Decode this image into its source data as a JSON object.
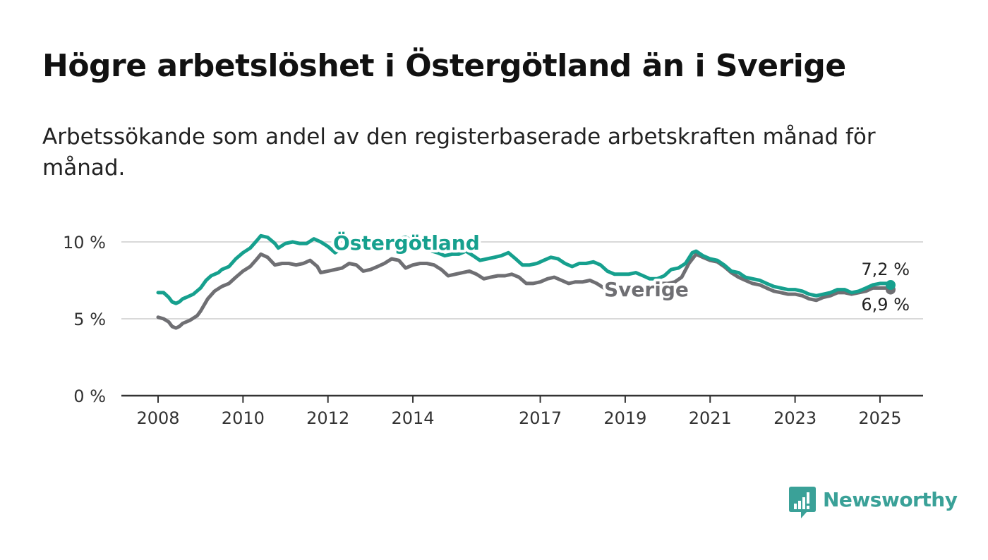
{
  "header": {
    "title": "Högre arbetslöshet i Östergötland än i Sverige",
    "subtitle": "Arbetssökande som andel av den registerbaserade arbetskraften månad för månad."
  },
  "brand": {
    "name": "Newsworthy",
    "icon": "newsworthy-logo-icon",
    "color": "#3aa198"
  },
  "chart_data": {
    "type": "line",
    "title": "Högre arbetslöshet i Östergötland än i Sverige",
    "subtitle": "Arbetssökande som andel av den registerbaserade arbetskraften månad för månad.",
    "xlabel": "",
    "ylabel": "",
    "xlim": [
      2008,
      2025.25
    ],
    "ylim": [
      0,
      10.5
    ],
    "y_ticks": [
      0,
      5,
      10
    ],
    "y_tick_labels": [
      "0 %",
      "5 %",
      "10 %"
    ],
    "x_ticks": [
      2008,
      2010,
      2012,
      2014,
      2017,
      2019,
      2021,
      2023,
      2025
    ],
    "x_tick_labels": [
      "2008",
      "2010",
      "2012",
      "2014",
      "2017",
      "2019",
      "2021",
      "2023",
      "2025"
    ],
    "grid": "horizontal",
    "legend": "inline labels",
    "series": [
      {
        "name": "Östergötland",
        "color": "#16a08e",
        "points": [
          [
            2008.0,
            6.7
          ],
          [
            2008.13,
            6.7
          ],
          [
            2008.25,
            6.4
          ],
          [
            2008.33,
            6.1
          ],
          [
            2008.42,
            6.0
          ],
          [
            2008.5,
            6.1
          ],
          [
            2008.58,
            6.3
          ],
          [
            2008.67,
            6.4
          ],
          [
            2008.83,
            6.6
          ],
          [
            2009.0,
            7.0
          ],
          [
            2009.13,
            7.5
          ],
          [
            2009.25,
            7.8
          ],
          [
            2009.42,
            8.0
          ],
          [
            2009.5,
            8.2
          ],
          [
            2009.67,
            8.4
          ],
          [
            2009.83,
            8.9
          ],
          [
            2010.0,
            9.3
          ],
          [
            2010.17,
            9.6
          ],
          [
            2010.33,
            10.1
          ],
          [
            2010.42,
            10.4
          ],
          [
            2010.58,
            10.3
          ],
          [
            2010.75,
            9.9
          ],
          [
            2010.83,
            9.6
          ],
          [
            2011.0,
            9.9
          ],
          [
            2011.17,
            10.0
          ],
          [
            2011.33,
            9.9
          ],
          [
            2011.5,
            9.9
          ],
          [
            2011.67,
            10.2
          ],
          [
            2011.83,
            10.0
          ],
          [
            2012.0,
            9.7
          ],
          [
            2012.17,
            9.3
          ],
          [
            2012.33,
            9.6
          ],
          [
            2012.5,
            9.8
          ],
          [
            2012.67,
            9.9
          ],
          [
            2012.83,
            9.8
          ],
          [
            2013.0,
            9.8
          ],
          [
            2013.17,
            9.7
          ],
          [
            2013.33,
            9.9
          ],
          [
            2013.5,
            10.0
          ],
          [
            2013.67,
            10.2
          ],
          [
            2013.83,
            10.3
          ],
          [
            2014.0,
            10.1
          ],
          [
            2014.17,
            9.8
          ],
          [
            2014.33,
            9.5
          ],
          [
            2014.58,
            9.3
          ],
          [
            2014.75,
            9.1
          ],
          [
            2014.92,
            9.2
          ],
          [
            2015.08,
            9.2
          ],
          [
            2015.25,
            9.4
          ],
          [
            2015.42,
            9.1
          ],
          [
            2015.58,
            8.8
          ],
          [
            2015.75,
            8.9
          ],
          [
            2015.92,
            9.0
          ],
          [
            2016.08,
            9.1
          ],
          [
            2016.25,
            9.3
          ],
          [
            2016.42,
            8.9
          ],
          [
            2016.58,
            8.5
          ],
          [
            2016.75,
            8.5
          ],
          [
            2016.92,
            8.6
          ],
          [
            2017.08,
            8.8
          ],
          [
            2017.25,
            9.0
          ],
          [
            2017.42,
            8.9
          ],
          [
            2017.58,
            8.6
          ],
          [
            2017.75,
            8.4
          ],
          [
            2017.92,
            8.6
          ],
          [
            2018.08,
            8.6
          ],
          [
            2018.25,
            8.7
          ],
          [
            2018.42,
            8.5
          ],
          [
            2018.58,
            8.1
          ],
          [
            2018.75,
            7.9
          ],
          [
            2018.92,
            7.9
          ],
          [
            2019.08,
            7.9
          ],
          [
            2019.25,
            8.0
          ],
          [
            2019.42,
            7.8
          ],
          [
            2019.58,
            7.6
          ],
          [
            2019.75,
            7.6
          ],
          [
            2019.92,
            7.8
          ],
          [
            2020.08,
            8.2
          ],
          [
            2020.25,
            8.3
          ],
          [
            2020.42,
            8.6
          ],
          [
            2020.58,
            9.3
          ],
          [
            2020.67,
            9.4
          ],
          [
            2020.83,
            9.1
          ],
          [
            2021.0,
            8.9
          ],
          [
            2021.17,
            8.8
          ],
          [
            2021.33,
            8.5
          ],
          [
            2021.5,
            8.1
          ],
          [
            2021.67,
            8.0
          ],
          [
            2021.83,
            7.7
          ],
          [
            2022.0,
            7.6
          ],
          [
            2022.17,
            7.5
          ],
          [
            2022.33,
            7.3
          ],
          [
            2022.5,
            7.1
          ],
          [
            2022.67,
            7.0
          ],
          [
            2022.83,
            6.9
          ],
          [
            2023.0,
            6.9
          ],
          [
            2023.17,
            6.8
          ],
          [
            2023.33,
            6.6
          ],
          [
            2023.5,
            6.5
          ],
          [
            2023.67,
            6.6
          ],
          [
            2023.83,
            6.7
          ],
          [
            2024.0,
            6.9
          ],
          [
            2024.17,
            6.9
          ],
          [
            2024.33,
            6.7
          ],
          [
            2024.5,
            6.8
          ],
          [
            2024.67,
            7.0
          ],
          [
            2024.83,
            7.2
          ],
          [
            2025.0,
            7.3
          ],
          [
            2025.17,
            7.3
          ],
          [
            2025.25,
            7.2
          ]
        ]
      },
      {
        "name": "Sverige",
        "color": "#6f6f73",
        "points": [
          [
            2008.0,
            5.1
          ],
          [
            2008.13,
            5.0
          ],
          [
            2008.25,
            4.8
          ],
          [
            2008.33,
            4.5
          ],
          [
            2008.42,
            4.4
          ],
          [
            2008.5,
            4.5
          ],
          [
            2008.58,
            4.7
          ],
          [
            2008.75,
            4.9
          ],
          [
            2008.92,
            5.2
          ],
          [
            2009.0,
            5.5
          ],
          [
            2009.17,
            6.3
          ],
          [
            2009.33,
            6.8
          ],
          [
            2009.5,
            7.1
          ],
          [
            2009.67,
            7.3
          ],
          [
            2009.83,
            7.7
          ],
          [
            2010.0,
            8.1
          ],
          [
            2010.17,
            8.4
          ],
          [
            2010.33,
            8.9
          ],
          [
            2010.42,
            9.2
          ],
          [
            2010.58,
            9.0
          ],
          [
            2010.75,
            8.5
          ],
          [
            2010.92,
            8.6
          ],
          [
            2011.08,
            8.6
          ],
          [
            2011.25,
            8.5
          ],
          [
            2011.42,
            8.6
          ],
          [
            2011.58,
            8.8
          ],
          [
            2011.75,
            8.4
          ],
          [
            2011.83,
            8.0
          ],
          [
            2012.0,
            8.1
          ],
          [
            2012.17,
            8.2
          ],
          [
            2012.33,
            8.3
          ],
          [
            2012.5,
            8.6
          ],
          [
            2012.67,
            8.5
          ],
          [
            2012.83,
            8.1
          ],
          [
            2013.0,
            8.2
          ],
          [
            2013.17,
            8.4
          ],
          [
            2013.33,
            8.6
          ],
          [
            2013.5,
            8.9
          ],
          [
            2013.67,
            8.8
          ],
          [
            2013.83,
            8.3
          ],
          [
            2014.0,
            8.5
          ],
          [
            2014.17,
            8.6
          ],
          [
            2014.33,
            8.6
          ],
          [
            2014.5,
            8.5
          ],
          [
            2014.67,
            8.2
          ],
          [
            2014.83,
            7.8
          ],
          [
            2015.0,
            7.9
          ],
          [
            2015.17,
            8.0
          ],
          [
            2015.33,
            8.1
          ],
          [
            2015.5,
            7.9
          ],
          [
            2015.67,
            7.6
          ],
          [
            2015.83,
            7.7
          ],
          [
            2016.0,
            7.8
          ],
          [
            2016.17,
            7.8
          ],
          [
            2016.33,
            7.9
          ],
          [
            2016.5,
            7.7
          ],
          [
            2016.67,
            7.3
          ],
          [
            2016.83,
            7.3
          ],
          [
            2017.0,
            7.4
          ],
          [
            2017.17,
            7.6
          ],
          [
            2017.33,
            7.7
          ],
          [
            2017.5,
            7.5
          ],
          [
            2017.67,
            7.3
          ],
          [
            2017.83,
            7.4
          ],
          [
            2018.0,
            7.4
          ],
          [
            2018.17,
            7.5
          ],
          [
            2018.33,
            7.3
          ],
          [
            2018.5,
            7.0
          ],
          [
            2018.67,
            6.8
          ],
          [
            2018.83,
            6.8
          ],
          [
            2019.0,
            6.8
          ],
          [
            2019.17,
            6.8
          ],
          [
            2019.33,
            6.9
          ],
          [
            2019.5,
            7.0
          ],
          [
            2019.67,
            7.2
          ],
          [
            2019.83,
            7.3
          ],
          [
            2020.0,
            7.3
          ],
          [
            2020.17,
            7.4
          ],
          [
            2020.33,
            7.7
          ],
          [
            2020.5,
            8.6
          ],
          [
            2020.67,
            9.2
          ],
          [
            2020.83,
            9.0
          ],
          [
            2021.0,
            8.8
          ],
          [
            2021.17,
            8.7
          ],
          [
            2021.33,
            8.4
          ],
          [
            2021.5,
            8.0
          ],
          [
            2021.67,
            7.7
          ],
          [
            2021.83,
            7.5
          ],
          [
            2022.0,
            7.3
          ],
          [
            2022.17,
            7.2
          ],
          [
            2022.33,
            7.0
          ],
          [
            2022.5,
            6.8
          ],
          [
            2022.67,
            6.7
          ],
          [
            2022.83,
            6.6
          ],
          [
            2023.0,
            6.6
          ],
          [
            2023.17,
            6.5
          ],
          [
            2023.33,
            6.3
          ],
          [
            2023.5,
            6.2
          ],
          [
            2023.67,
            6.4
          ],
          [
            2023.83,
            6.5
          ],
          [
            2024.0,
            6.7
          ],
          [
            2024.17,
            6.7
          ],
          [
            2024.33,
            6.6
          ],
          [
            2024.5,
            6.7
          ],
          [
            2024.67,
            6.8
          ],
          [
            2024.83,
            7.0
          ],
          [
            2025.0,
            7.0
          ],
          [
            2025.17,
            7.0
          ],
          [
            2025.25,
            6.9
          ]
        ]
      }
    ],
    "annotations": [
      {
        "series": "Östergötland",
        "text": "7,2 %"
      },
      {
        "series": "Sverige",
        "text": "6,9 %"
      }
    ]
  }
}
